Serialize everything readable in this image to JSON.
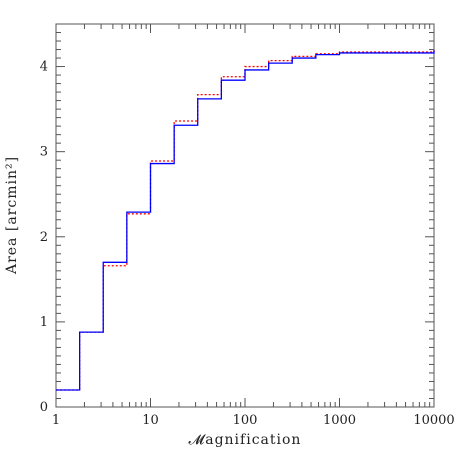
{
  "chart_data": {
    "type": "line",
    "xlabel": "𝓜agnification",
    "ylabel": "Area [arcmin²]",
    "x_scale": "log",
    "xlim": [
      1,
      10000
    ],
    "ylim": [
      0,
      4.5
    ],
    "x_ticks": [
      1,
      10,
      100,
      1000,
      10000
    ],
    "x_tick_labels": [
      "1",
      "10",
      "100",
      "1000",
      "10000"
    ],
    "y_ticks": [
      0,
      1,
      2,
      3,
      4
    ],
    "y_tick_labels": [
      "0",
      "1",
      "2",
      "3",
      "4"
    ],
    "grid": false,
    "series": [
      {
        "color": "#0000ff",
        "style": "solid",
        "step": true,
        "x": [
          1,
          1.78,
          3.16,
          5.62,
          10,
          17.8,
          31.6,
          56.2,
          100,
          178,
          316,
          562,
          1000,
          10000
        ],
        "y": [
          0.2,
          0.88,
          1.7,
          2.29,
          2.86,
          3.31,
          3.62,
          3.84,
          3.96,
          4.04,
          4.1,
          4.14,
          4.16,
          4.19
        ]
      },
      {
        "color": "#ff0000",
        "style": "dotted",
        "step": true,
        "x": [
          1,
          1.78,
          3.16,
          5.62,
          10,
          17.8,
          31.6,
          56.2,
          100,
          178,
          316,
          562,
          1000,
          10000
        ],
        "y": [
          0.2,
          0.88,
          1.66,
          2.27,
          2.89,
          3.36,
          3.67,
          3.88,
          4.0,
          4.07,
          4.12,
          4.15,
          4.17,
          4.2
        ]
      }
    ]
  }
}
